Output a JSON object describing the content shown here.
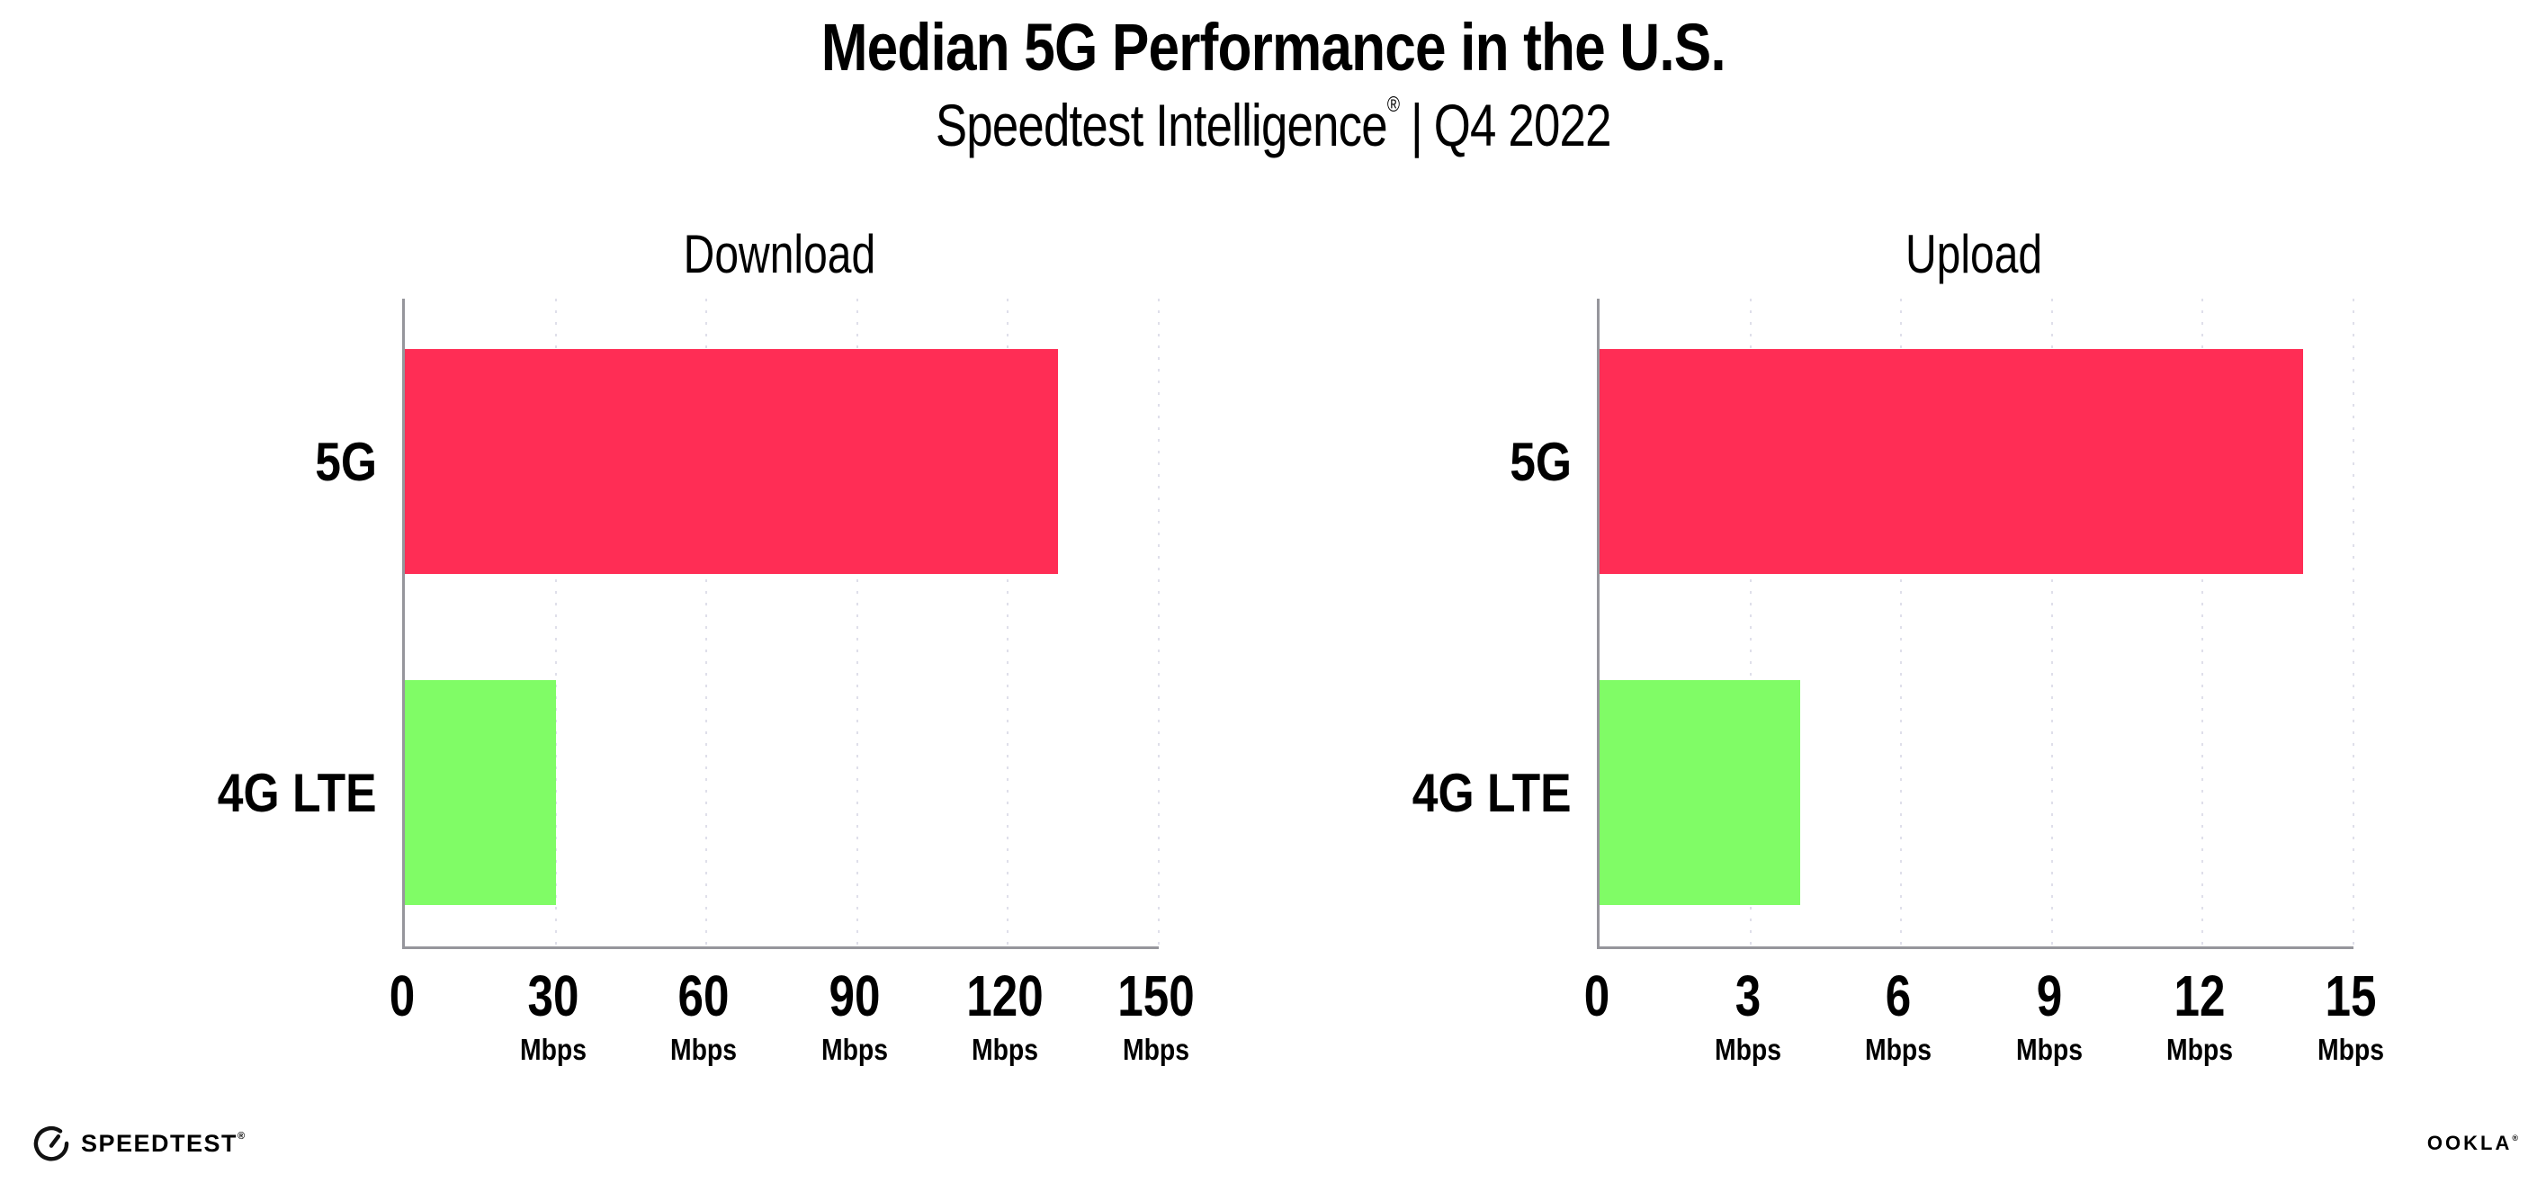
{
  "header": {
    "title": "Median 5G Performance in the U.S.",
    "subtitle": {
      "product": "Speedtest Intelligence",
      "registered": "®",
      "separator": "|",
      "period": "Q4 2022"
    }
  },
  "chart_data": [
    {
      "type": "bar",
      "orientation": "horizontal",
      "title": "Download",
      "categories": [
        "5G",
        "4G LTE"
      ],
      "values": [
        130,
        30
      ],
      "unit": "Mbps",
      "xlim": [
        0,
        150
      ],
      "xticks": [
        0,
        30,
        60,
        90,
        120,
        150
      ],
      "bar_colors": [
        "#ff2d55",
        "#80fc66"
      ],
      "grid": "dotted vertical lines at each tick",
      "legend": "none"
    },
    {
      "type": "bar",
      "orientation": "horizontal",
      "title": "Upload",
      "categories": [
        "5G",
        "4G LTE"
      ],
      "values": [
        14,
        4
      ],
      "unit": "Mbps",
      "xlim": [
        0,
        15
      ],
      "xticks": [
        0,
        3,
        6,
        9,
        12,
        15
      ],
      "bar_colors": [
        "#ff2d55",
        "#80fc66"
      ],
      "grid": "dotted vertical lines at each tick",
      "legend": "none"
    }
  ],
  "footer": {
    "speedtest": {
      "icon": "speedtest-gauge-icon",
      "label": "SPEEDTEST",
      "registered": "®"
    },
    "ookla": {
      "label": "OOKLA",
      "registered": "®"
    }
  },
  "colors": {
    "bar_5g": "#ff2d55",
    "bar_4g_lte": "#80fc66",
    "gridline": "#dfdfea",
    "axis": "#96969c",
    "text": "#000000",
    "background": "#ffffff"
  }
}
